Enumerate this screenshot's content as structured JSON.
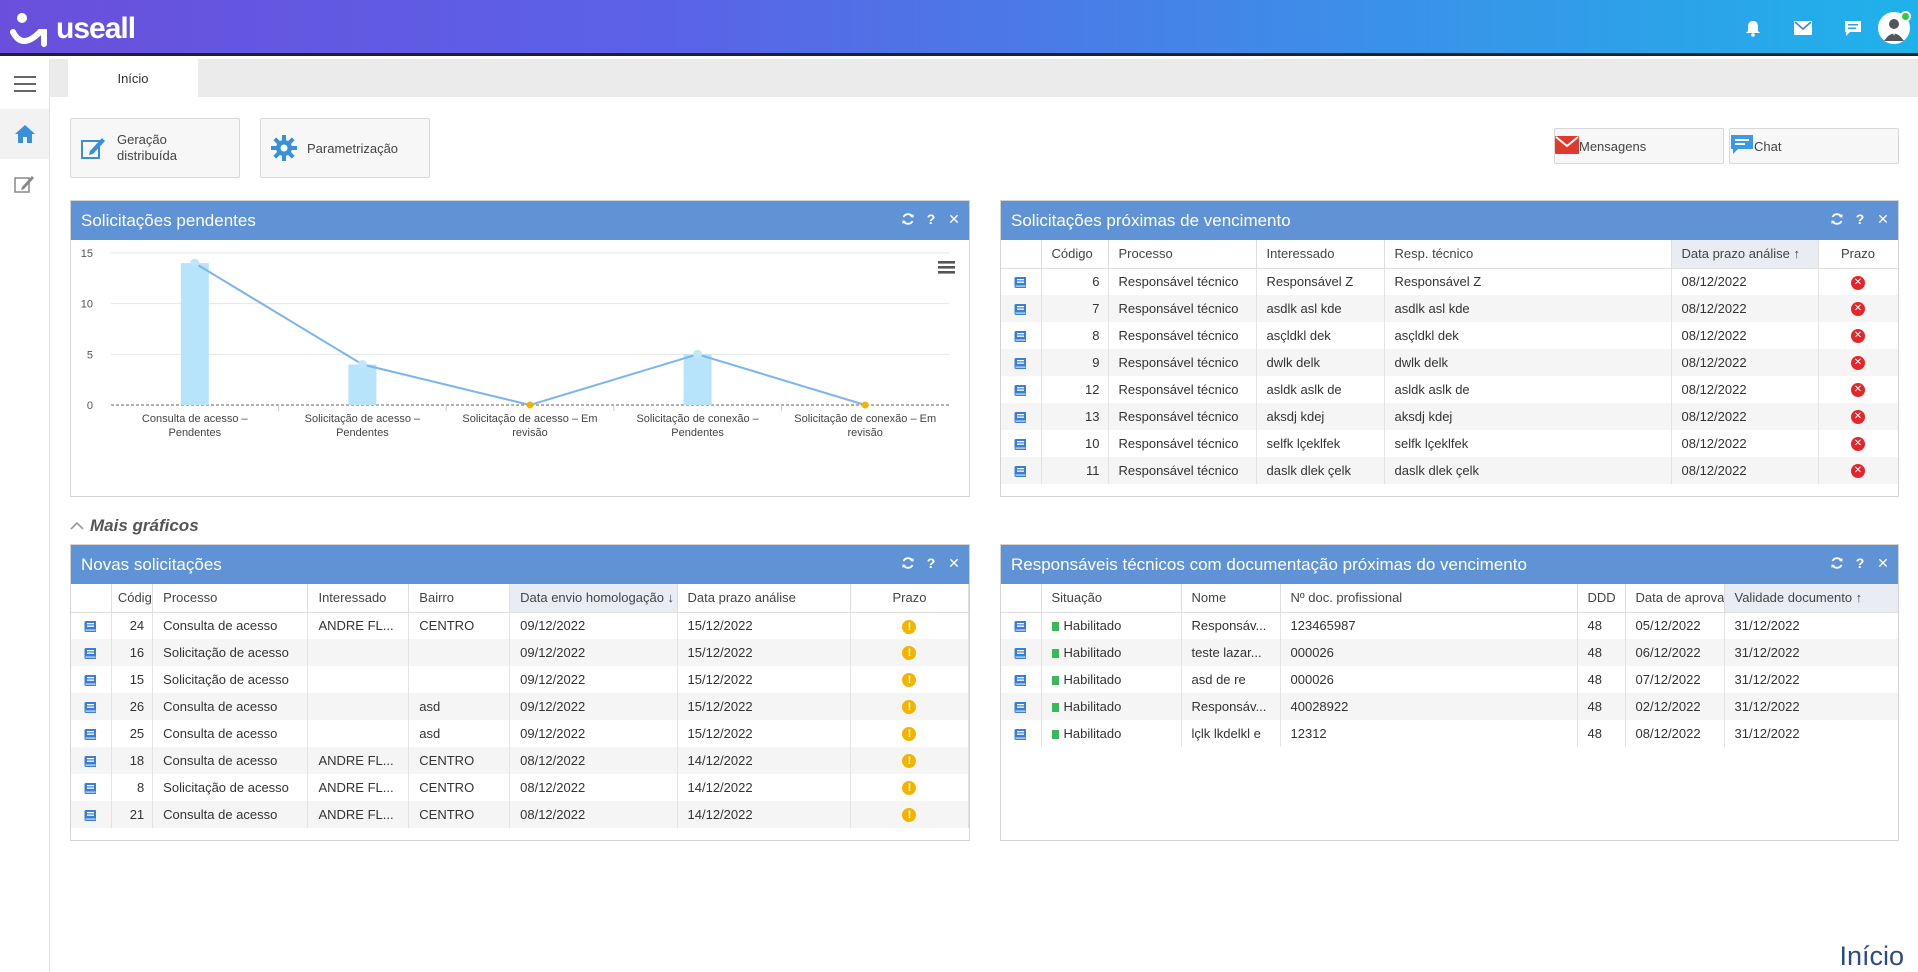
{
  "app": {
    "logo_text": "useall"
  },
  "header_icons": [
    "bell-icon",
    "mail-icon",
    "chat-icon",
    "user-avatar"
  ],
  "sidebar": {
    "items": [
      {
        "name": "menu",
        "icon": "hamburger-icon"
      },
      {
        "name": "home",
        "icon": "home-icon",
        "active": true
      },
      {
        "name": "edit",
        "icon": "edit-icon"
      }
    ]
  },
  "tabs": [
    {
      "label": "Início",
      "active": true
    }
  ],
  "shortcuts": {
    "geracao": {
      "label1": "Geração",
      "label2": "distribuída"
    },
    "parametrizacao": {
      "label": "Parametrização"
    },
    "mensagens": {
      "label": "Mensagens"
    },
    "chat": {
      "label": "Chat"
    }
  },
  "colors": {
    "panel_header": "#5f93d5",
    "bar": "#b7e4fb",
    "line": "#7cb5ec",
    "warning": "#f3b400",
    "error": "#e3262b",
    "due": "#e0562c"
  },
  "solicitacoes_pendentes": {
    "title": "Solicitações pendentes",
    "chart_data": {
      "type": "bar",
      "categories": [
        [
          "Consulta de acesso –",
          "Pendentes"
        ],
        [
          "Solicitação de acesso –",
          "Pendentes"
        ],
        [
          "Solicitação de acesso – Em",
          "revisão"
        ],
        [
          "Solicitação de conexão –",
          "Pendentes"
        ],
        [
          "Solicitação de conexão – Em",
          "revisão"
        ]
      ],
      "values": [
        14,
        4,
        0,
        5,
        0
      ],
      "ylim": [
        0,
        15
      ],
      "yticks": [
        0,
        5,
        10,
        15
      ],
      "overlay_line": true,
      "grid": true,
      "legend": "none"
    }
  },
  "proximas_vencimento": {
    "title": "Solicitações próximas de vencimento",
    "columns": [
      "",
      "Código",
      "Processo",
      "Interessado",
      "Resp. técnico",
      "Data prazo análise ↑",
      "Prazo"
    ],
    "rows": [
      {
        "codigo": "6",
        "processo": "Responsável técnico",
        "interessado": "Responsável Z",
        "resp": "Responsável Z",
        "data": "08/12/2022"
      },
      {
        "codigo": "7",
        "processo": "Responsável técnico",
        "interessado": "asdlk asl kde",
        "resp": "asdlk asl kde",
        "data": "08/12/2022"
      },
      {
        "codigo": "8",
        "processo": "Responsável técnico",
        "interessado": "asçldkl dek",
        "resp": "asçldkl dek",
        "data": "08/12/2022"
      },
      {
        "codigo": "9",
        "processo": "Responsável técnico",
        "interessado": "dwlk delk",
        "resp": "dwlk delk",
        "data": "08/12/2022"
      },
      {
        "codigo": "12",
        "processo": "Responsável técnico",
        "interessado": "asldk aslk de",
        "resp": "asldk aslk de",
        "data": "08/12/2022"
      },
      {
        "codigo": "13",
        "processo": "Responsável técnico",
        "interessado": "aksdj kdej",
        "resp": "aksdj kdej",
        "data": "08/12/2022"
      },
      {
        "codigo": "10",
        "processo": "Responsável técnico",
        "interessado": "selfk lçeklfek",
        "resp": "selfk lçeklfek",
        "data": "08/12/2022"
      },
      {
        "codigo": "11",
        "processo": "Responsável técnico",
        "interessado": "daslk dlek çelk",
        "resp": "daslk dlek çelk",
        "data": "08/12/2022"
      }
    ]
  },
  "mais_graficos": {
    "label": "Mais gráficos"
  },
  "novas_solicitacoes": {
    "title": "Novas solicitações",
    "columns": [
      "",
      "Códig",
      "Processo",
      "Interessado",
      "Bairro",
      "Data envio homologação ↓",
      "Data prazo análise",
      "Prazo"
    ],
    "rows": [
      {
        "codigo": "24",
        "processo": "Consulta de acesso",
        "interessado": "ANDRE FL...",
        "bairro": "CENTRO",
        "envio": "09/12/2022",
        "prazo": "15/12/2022"
      },
      {
        "codigo": "16",
        "processo": "Solicitação de acesso",
        "interessado": "",
        "bairro": "",
        "envio": "09/12/2022",
        "prazo": "15/12/2022"
      },
      {
        "codigo": "15",
        "processo": "Solicitação de acesso",
        "interessado": "",
        "bairro": "",
        "envio": "09/12/2022",
        "prazo": "15/12/2022"
      },
      {
        "codigo": "26",
        "processo": "Consulta de acesso",
        "interessado": "",
        "bairro": "asd",
        "envio": "09/12/2022",
        "prazo": "15/12/2022"
      },
      {
        "codigo": "25",
        "processo": "Consulta de acesso",
        "interessado": "",
        "bairro": "asd",
        "envio": "09/12/2022",
        "prazo": "15/12/2022"
      },
      {
        "codigo": "18",
        "processo": "Consulta de acesso",
        "interessado": "ANDRE FL...",
        "bairro": "CENTRO",
        "envio": "08/12/2022",
        "prazo": "14/12/2022"
      },
      {
        "codigo": "8",
        "processo": "Solicitação de acesso",
        "interessado": "ANDRE FL...",
        "bairro": "CENTRO",
        "envio": "08/12/2022",
        "prazo": "14/12/2022"
      },
      {
        "codigo": "21",
        "processo": "Consulta de acesso",
        "interessado": "ANDRE FL...",
        "bairro": "CENTRO",
        "envio": "08/12/2022",
        "prazo": "14/12/2022"
      }
    ]
  },
  "responsaveis": {
    "title": "Responsáveis técnicos com documentação próximas do vencimento",
    "columns": [
      "",
      "Situação",
      "Nome",
      "Nº doc. profissional",
      "DDD",
      "Data de aprova",
      "Validade documento ↑"
    ],
    "rows": [
      {
        "situacao": "Habilitado",
        "nome": "Responsáv...",
        "doc": "123465987",
        "ddd": "48",
        "aprov": "05/12/2022",
        "validade": "31/12/2022"
      },
      {
        "situacao": "Habilitado",
        "nome": "teste lazar...",
        "doc": "000026",
        "ddd": "48",
        "aprov": "06/12/2022",
        "validade": "31/12/2022"
      },
      {
        "situacao": "Habilitado",
        "nome": "asd de re",
        "doc": "000026",
        "ddd": "48",
        "aprov": "07/12/2022",
        "validade": "31/12/2022"
      },
      {
        "situacao": "Habilitado",
        "nome": "Responsáv...",
        "doc": "40028922",
        "ddd": "48",
        "aprov": "02/12/2022",
        "validade": "31/12/2022"
      },
      {
        "situacao": "Habilitado",
        "nome": "lçlk lkdelkl e",
        "doc": "12312",
        "ddd": "48",
        "aprov": "08/12/2022",
        "validade": "31/12/2022"
      }
    ]
  },
  "footer": {
    "title": "Início"
  }
}
